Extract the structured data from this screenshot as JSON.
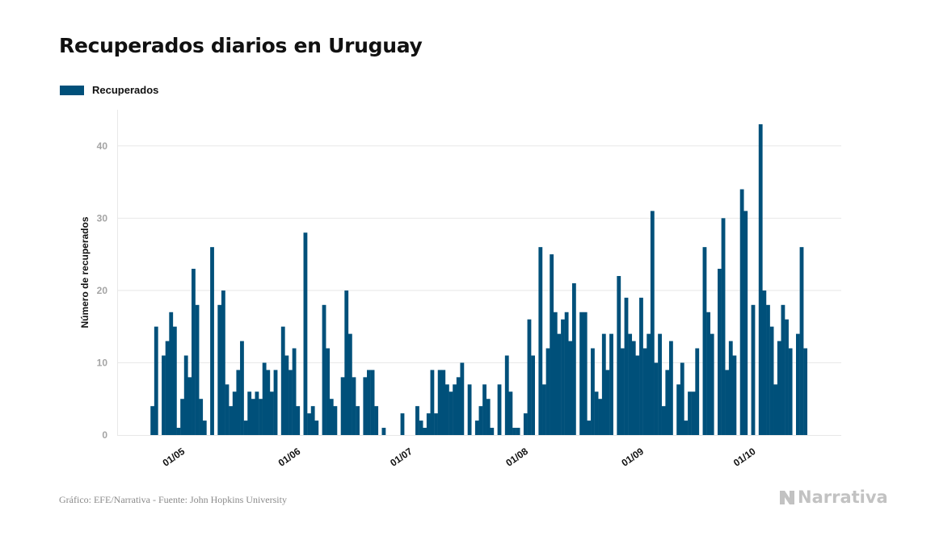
{
  "colors": {
    "bar": "#00507a",
    "grid": "#e8e8e8",
    "axis": "#cfcfcf",
    "brand": "#c2c2c2"
  },
  "footer": {
    "source": "Gráfico: EFE/Narrativa - Fuente: John Hopkins University"
  },
  "brand": {
    "name": "Narrativa",
    "icon": "narrativa-logo-icon"
  },
  "chart_data": {
    "type": "bar",
    "title": "Recuperados diarios en Uruguay",
    "xlabel": "",
    "ylabel": "Número de recuperados",
    "legend_position": "top-left",
    "grid": true,
    "ylim": [
      0,
      45
    ],
    "yticks": [
      0,
      10,
      20,
      30,
      40
    ],
    "x_start": "2020-04-21",
    "x_ticks": [
      "01/05",
      "01/06",
      "01/07",
      "01/08",
      "01/09",
      "01/10"
    ],
    "series": [
      {
        "name": "Recuperados",
        "values": [
          0,
          0,
          4,
          15,
          0,
          11,
          13,
          17,
          15,
          1,
          5,
          11,
          8,
          23,
          18,
          5,
          2,
          0,
          26,
          0,
          18,
          20,
          7,
          4,
          6,
          9,
          13,
          2,
          6,
          5,
          6,
          5,
          10,
          9,
          6,
          9,
          0,
          15,
          11,
          9,
          12,
          4,
          0,
          28,
          3,
          4,
          2,
          0,
          18,
          12,
          5,
          4,
          0,
          8,
          20,
          14,
          8,
          4,
          0,
          8,
          9,
          9,
          4,
          0,
          1,
          0,
          0,
          0,
          0,
          3,
          0,
          0,
          0,
          4,
          2,
          1,
          3,
          9,
          3,
          9,
          9,
          7,
          6,
          7,
          8,
          10,
          0,
          7,
          0,
          2,
          4,
          7,
          5,
          1,
          0,
          7,
          0,
          11,
          6,
          1,
          1,
          0,
          3,
          16,
          11,
          0,
          26,
          7,
          12,
          25,
          17,
          14,
          16,
          17,
          13,
          21,
          0,
          17,
          17,
          2,
          12,
          6,
          5,
          14,
          9,
          14,
          0,
          22,
          12,
          19,
          14,
          13,
          11,
          19,
          12,
          14,
          31,
          10,
          14,
          4,
          9,
          13,
          0,
          7,
          10,
          2,
          6,
          6,
          12,
          0,
          26,
          17,
          14,
          0,
          23,
          30,
          9,
          13,
          11,
          0,
          34,
          31,
          0,
          18,
          0,
          43,
          20,
          18,
          15,
          7,
          13,
          18,
          16,
          12,
          0,
          14,
          26,
          12
        ]
      }
    ]
  }
}
